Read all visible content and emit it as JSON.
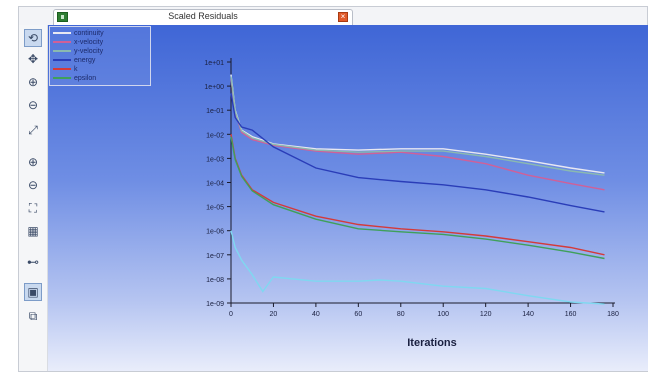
{
  "window": {
    "tab_title": "Scaled Residuals",
    "close_glyph": "×"
  },
  "toolbar": {
    "tools": [
      {
        "name": "rotate-icon",
        "glyph": "⟲"
      },
      {
        "name": "pan-icon",
        "glyph": "✥"
      },
      {
        "name": "zoom-in-icon",
        "glyph": "⊕"
      },
      {
        "name": "zoom-out-icon",
        "glyph": "⊖"
      },
      {
        "name": "probe-icon",
        "glyph": "⤢"
      },
      {
        "name": "zoom-box-icon",
        "glyph": "⊕"
      },
      {
        "name": "zoom-fit-icon",
        "glyph": "⊖"
      },
      {
        "name": "fit-view-icon",
        "glyph": "⛶"
      },
      {
        "name": "view-options-icon",
        "glyph": "▦"
      },
      {
        "name": "camera-icon",
        "glyph": "⊷"
      },
      {
        "name": "display-icon",
        "glyph": "▣"
      },
      {
        "name": "render-icon",
        "glyph": "⧉"
      }
    ]
  },
  "chart_data": {
    "type": "line",
    "title": "",
    "xlabel": "Iterations",
    "ylabel": "",
    "xlim": [
      0,
      180
    ],
    "ylim_log10": [
      -9,
      1
    ],
    "y_scale": "log",
    "grid": false,
    "legend_position": "top-left",
    "x_ticks": [
      "0",
      "20",
      "40",
      "60",
      "80",
      "100",
      "120",
      "140",
      "160",
      "180"
    ],
    "y_ticks": [
      "1e+01",
      "1e+00",
      "1e-01",
      "1e-02",
      "1e-03",
      "1e-04",
      "1e-05",
      "1e-06",
      "1e-07",
      "1e-08",
      "1e-09"
    ],
    "series": [
      {
        "name": "continuity",
        "color": "#e8e8f2",
        "x": [
          0,
          2,
          5,
          10,
          20,
          40,
          60,
          80,
          100,
          120,
          140,
          160,
          176
        ],
        "y": [
          3,
          0.1,
          0.015,
          0.008,
          0.004,
          0.0025,
          0.0022,
          0.0025,
          0.0025,
          0.0015,
          0.0008,
          0.0004,
          0.00025
        ]
      },
      {
        "name": "x-velocity",
        "color": "#d06098",
        "x": [
          0,
          2,
          5,
          10,
          20,
          40,
          60,
          80,
          100,
          120,
          140,
          160,
          176
        ],
        "y": [
          2,
          0.08,
          0.012,
          0.006,
          0.0035,
          0.002,
          0.0015,
          0.0018,
          0.0012,
          0.0006,
          0.0002,
          9e-05,
          5e-05
        ]
      },
      {
        "name": "y-velocity",
        "color": "#8ab9b0",
        "x": [
          0,
          2,
          5,
          10,
          20,
          40,
          60,
          80,
          100,
          120,
          140,
          160,
          176
        ],
        "y": [
          2.5,
          0.09,
          0.014,
          0.007,
          0.0038,
          0.0022,
          0.0018,
          0.002,
          0.002,
          0.0012,
          0.0006,
          0.0003,
          0.0002
        ]
      },
      {
        "name": "energy",
        "color": "#2a3db8",
        "x": [
          0,
          2,
          5,
          10,
          20,
          40,
          60,
          80,
          100,
          120,
          140,
          160,
          176
        ],
        "y": [
          0.5,
          0.05,
          0.02,
          0.015,
          0.003,
          0.0004,
          0.00016,
          0.00011,
          8e-05,
          5e-05,
          2.5e-05,
          1.1e-05,
          6e-06
        ]
      },
      {
        "name": "k",
        "color": "#d43a3a",
        "x": [
          0,
          2,
          5,
          10,
          20,
          40,
          60,
          80,
          100,
          120,
          140,
          160,
          176
        ],
        "y": [
          0.01,
          0.001,
          0.0002,
          5e-05,
          1.5e-05,
          4e-06,
          1.8e-06,
          1.2e-06,
          9e-07,
          6e-07,
          3.5e-07,
          2e-07,
          1e-07
        ]
      },
      {
        "name": "epsilon",
        "color": "#3fa05a",
        "x": [
          0,
          2,
          5,
          10,
          20,
          40,
          60,
          80,
          100,
          120,
          140,
          160,
          176
        ],
        "y": [
          0.008,
          0.0009,
          0.00018,
          4.5e-05,
          1.2e-05,
          3e-06,
          1.2e-06,
          9e-07,
          7e-07,
          4.5e-07,
          2.5e-07,
          1.3e-07,
          7e-08
        ]
      },
      {
        "name": "",
        "color": "#7fd8f0",
        "x": [
          0,
          2,
          5,
          10,
          15,
          20,
          40,
          60,
          70,
          80,
          100,
          120,
          140,
          160,
          176
        ],
        "y": [
          1e-06,
          2e-07,
          6e-08,
          1.5e-08,
          3e-09,
          1.2e-08,
          8e-09,
          8e-09,
          9e-09,
          8e-09,
          5e-09,
          4e-09,
          2e-09,
          1.1e-09,
          9e-10
        ]
      }
    ]
  }
}
